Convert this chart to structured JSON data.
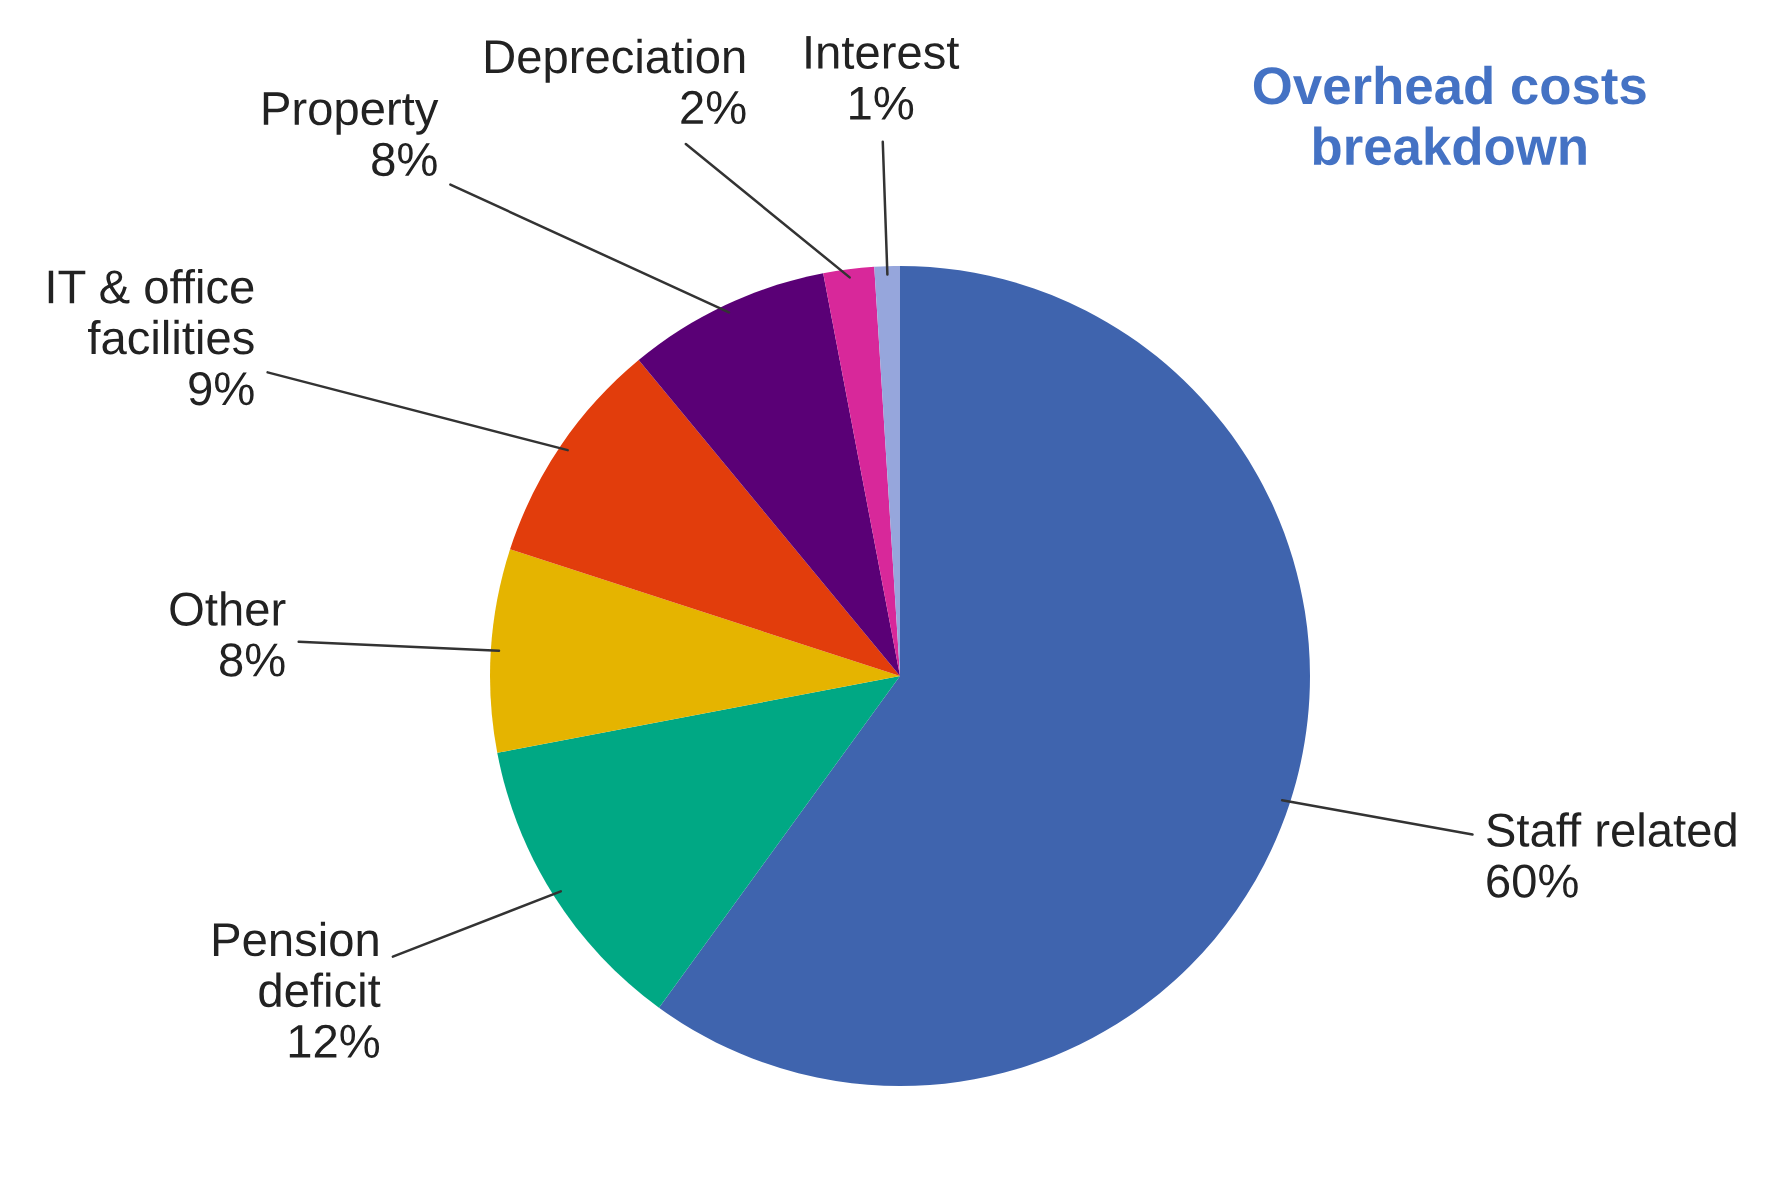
{
  "chart_data": {
    "type": "pie",
    "title": "Overhead costs\nbreakdown",
    "categories": [
      "Staff related",
      "Pension\ndeficit",
      "Other",
      "IT & office\nfacilities",
      "Property",
      "Depreciation",
      "Interest"
    ],
    "values": [
      60,
      12,
      8,
      9,
      8,
      2,
      1
    ],
    "value_labels": [
      "60%",
      "12%",
      "8%",
      "9%",
      "8%",
      "2%",
      "1%"
    ],
    "colors": [
      "#3f64ae",
      "#00a884",
      "#e5b400",
      "#e23d0c",
      "#5a0076",
      "#d8289a",
      "#96a6dc"
    ]
  }
}
